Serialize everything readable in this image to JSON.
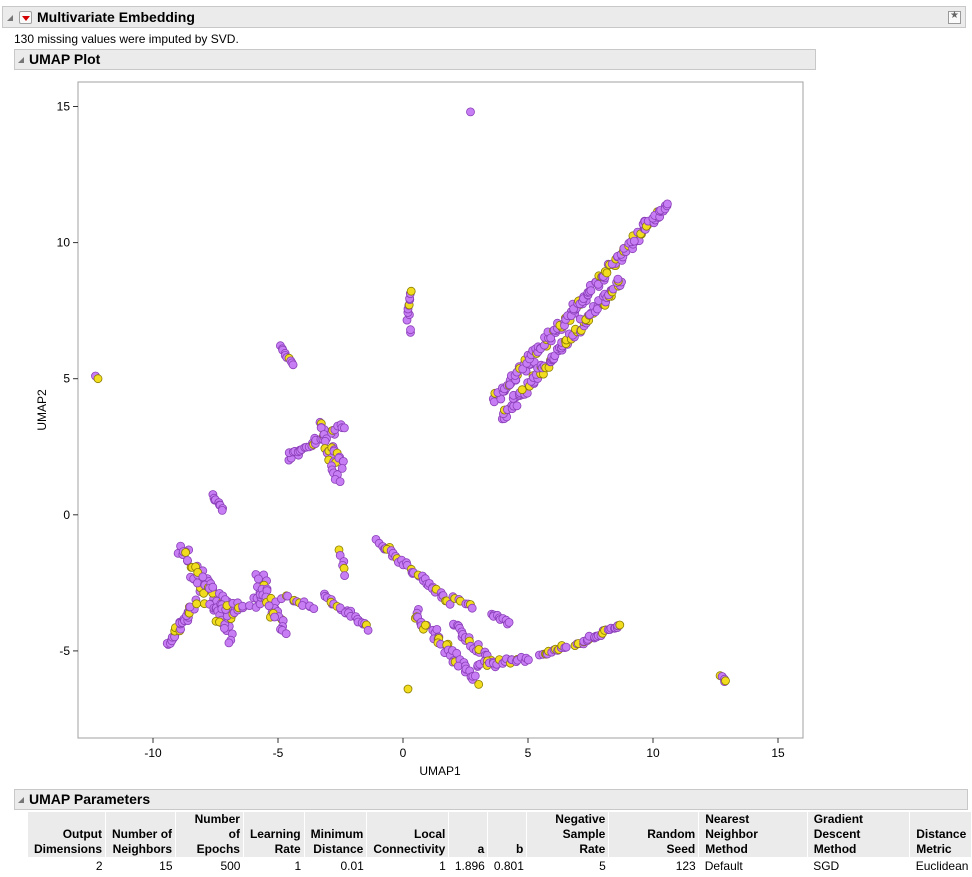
{
  "report": {
    "title": "Multivariate Embedding",
    "note": "130 missing values were imputed by SVD."
  },
  "plot_section": {
    "title": "UMAP Plot"
  },
  "params_section": {
    "title": "UMAP Parameters"
  },
  "params_table": {
    "headers": [
      "Output\nDimensions",
      "Number of\nNeighbors",
      "Number\nof Epochs",
      "Learning\nRate",
      "Minimum\nDistance",
      "Local\nConnectivity",
      "a",
      "b",
      "Negative\nSample Rate",
      "Random Seed",
      "Nearest\nNeighbor Method",
      "Gradient\nDescent Method",
      "Distance\nMetric"
    ],
    "values": [
      "2",
      "15",
      "500",
      "1",
      "0.01",
      "1",
      "1.896",
      "0.801",
      "5",
      "123",
      "Default",
      "SGD",
      "Euclidean"
    ]
  },
  "colors": {
    "purple": "#c77df3",
    "purple_edge": "#8a3fb8",
    "yellow": "#f2dc1e",
    "yellow_edge": "#8a7d00"
  },
  "chart_data": {
    "type": "scatter",
    "title": "",
    "xlabel": "UMAP1",
    "ylabel": "UMAP2",
    "xlim": [
      -13,
      16
    ],
    "ylim": [
      -8.2,
      15.9
    ],
    "xticks": [
      -10,
      -5,
      0,
      5,
      10,
      15
    ],
    "yticks": [
      -5,
      0,
      5,
      10,
      15
    ],
    "xtick_labels": [
      "-10",
      "-5",
      "0",
      "5",
      "10",
      "15"
    ],
    "ytick_labels": [
      "-5",
      "0",
      "5",
      "10",
      "15"
    ],
    "grid": false,
    "segments": [
      {
        "from": [
          3.7,
          4.2
        ],
        "to": [
          10.5,
          11.4
        ],
        "n": 180,
        "spread": 0.15
      },
      {
        "from": [
          3.9,
          3.6
        ],
        "to": [
          8.7,
          8.6
        ],
        "n": 120,
        "spread": 0.15
      },
      {
        "from": [
          0.2,
          7.2
        ],
        "to": [
          0.3,
          8.2
        ],
        "n": 10,
        "spread": 0.05
      },
      {
        "from": [
          -4.9,
          6.2
        ],
        "to": [
          -4.4,
          5.5
        ],
        "n": 10,
        "spread": 0.04
      },
      {
        "from": [
          -7.6,
          0.7
        ],
        "to": [
          -7.2,
          0.2
        ],
        "n": 10,
        "spread": 0.05
      },
      {
        "from": [
          -4.6,
          2.1
        ],
        "to": [
          -2.4,
          3.3
        ],
        "n": 35,
        "spread": 0.12
      },
      {
        "from": [
          -3.3,
          3.5
        ],
        "to": [
          -2.6,
          1.2
        ],
        "n": 25,
        "spread": 0.12
      },
      {
        "from": [
          -2.8,
          2.5
        ],
        "to": [
          -2.4,
          1.8
        ],
        "n": 10,
        "spread": 0.1
      },
      {
        "from": [
          -9.5,
          -4.8
        ],
        "to": [
          -8.3,
          -3.2
        ],
        "n": 30,
        "spread": 0.15
      },
      {
        "from": [
          -8.8,
          -1.2
        ],
        "to": [
          -7.0,
          -4.5
        ],
        "n": 55,
        "spread": 0.25
      },
      {
        "from": [
          -8.2,
          -2.2
        ],
        "to": [
          -6.8,
          -3.6
        ],
        "n": 30,
        "spread": 0.25
      },
      {
        "from": [
          -7.2,
          -3.6
        ],
        "to": [
          -5.4,
          -3.0
        ],
        "n": 25,
        "spread": 0.2
      },
      {
        "from": [
          -5.8,
          -2.3
        ],
        "to": [
          -4.8,
          -4.2
        ],
        "n": 35,
        "spread": 0.2
      },
      {
        "from": [
          -4.8,
          -3.0
        ],
        "to": [
          -3.6,
          -3.4
        ],
        "n": 12,
        "spread": 0.1
      },
      {
        "from": [
          -3.2,
          -3.0
        ],
        "to": [
          -1.3,
          -4.2
        ],
        "n": 25,
        "spread": 0.12
      },
      {
        "from": [
          -2.5,
          -1.3
        ],
        "to": [
          -2.3,
          -2.2
        ],
        "n": 6,
        "spread": 0.06
      },
      {
        "from": [
          -1.0,
          -1.0
        ],
        "to": [
          1.9,
          -3.2
        ],
        "n": 40,
        "spread": 0.1
      },
      {
        "from": [
          2.0,
          -3.0
        ],
        "to": [
          2.8,
          -3.4
        ],
        "n": 8,
        "spread": 0.06
      },
      {
        "from": [
          0.5,
          -3.6
        ],
        "to": [
          2.9,
          -6.1
        ],
        "n": 45,
        "spread": 0.15
      },
      {
        "from": [
          2.0,
          -4.0
        ],
        "to": [
          3.6,
          -5.5
        ],
        "n": 25,
        "spread": 0.12
      },
      {
        "from": [
          3.5,
          -3.6
        ],
        "to": [
          4.3,
          -4.0
        ],
        "n": 10,
        "spread": 0.06
      },
      {
        "from": [
          3.0,
          -5.5
        ],
        "to": [
          5.0,
          -5.3
        ],
        "n": 25,
        "spread": 0.1
      },
      {
        "from": [
          5.5,
          -5.2
        ],
        "to": [
          6.5,
          -4.8
        ],
        "n": 15,
        "spread": 0.06
      },
      {
        "from": [
          6.9,
          -4.8
        ],
        "to": [
          8.7,
          -4.0
        ],
        "n": 30,
        "spread": 0.08
      },
      {
        "from": [
          12.7,
          -5.9
        ],
        "to": [
          12.9,
          -6.1
        ],
        "n": 4,
        "spread": 0.04
      }
    ],
    "points": [
      {
        "x": 2.7,
        "y": 14.8,
        "c": "purple"
      },
      {
        "x": -12.3,
        "y": 5.1,
        "c": "purple"
      },
      {
        "x": -12.2,
        "y": 5.0,
        "c": "yellow"
      },
      {
        "x": 0.2,
        "y": -6.4,
        "c": "yellow"
      },
      {
        "x": 0.3,
        "y": 6.7,
        "c": "purple"
      },
      {
        "x": 0.3,
        "y": 6.8,
        "c": "purple"
      },
      {
        "x": 12.9,
        "y": -6.1,
        "c": "yellow"
      }
    ]
  }
}
